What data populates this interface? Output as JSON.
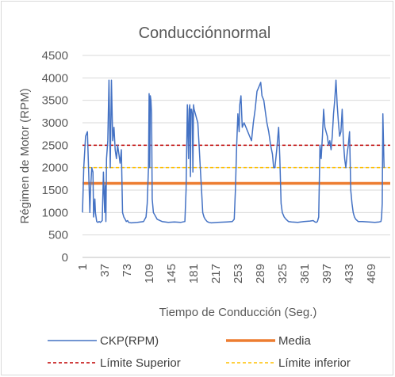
{
  "chart_data": {
    "type": "line",
    "title": "Conducciónnormal",
    "xlabel": "Tiempo de Conducción (Seg.)",
    "ylabel": "Régimen de Motor (RPM)",
    "ylim": [
      0,
      4500
    ],
    "y_ticks": [
      "0",
      "500",
      "1000",
      "1500",
      "2000",
      "2500",
      "3000",
      "3500",
      "4000",
      "4500"
    ],
    "xlim": [
      1,
      500
    ],
    "x_ticks": [
      "1",
      "37",
      "73",
      "109",
      "145",
      "181",
      "217",
      "253",
      "289",
      "325",
      "361",
      "397",
      "433",
      "469"
    ],
    "grid": "horizontal",
    "legend_position": "bottom",
    "series": [
      {
        "name": "CKP(RPM)",
        "style": "solid",
        "color": "#4472c4",
        "x": [
          1,
          3,
          6,
          9,
          11,
          13,
          14,
          16,
          18,
          19,
          21,
          22,
          24,
          26,
          28,
          30,
          33,
          35,
          37,
          38,
          39,
          40,
          42,
          44,
          46,
          48,
          50,
          52,
          54,
          56,
          58,
          60,
          62,
          64,
          66,
          68,
          70,
          72,
          74,
          76,
          80,
          90,
          100,
          104,
          106,
          107,
          108,
          109,
          110,
          111,
          112,
          113,
          114,
          116,
          118,
          122,
          130,
          140,
          150,
          160,
          167,
          169,
          171,
          172,
          173,
          174,
          175,
          176,
          177,
          178,
          179,
          180,
          181,
          182,
          184,
          186,
          188,
          190,
          192,
          194,
          196,
          198,
          200,
          203,
          206,
          210,
          220,
          235,
          244,
          247,
          249,
          251,
          253,
          255,
          256,
          258,
          260,
          263,
          266,
          269,
          272,
          275,
          278,
          281,
          284,
          287,
          290,
          292,
          295,
          298,
          300,
          303,
          306,
          309,
          311,
          313,
          316,
          319,
          321,
          323,
          325,
          328,
          331,
          335,
          340,
          350,
          360,
          370,
          375,
          378,
          380,
          382,
          384,
          386,
          388,
          390,
          392,
          394,
          396,
          398,
          400,
          402,
          404,
          406,
          408,
          410,
          412,
          414,
          416,
          418,
          420,
          422,
          424,
          426,
          428,
          430,
          432,
          434,
          436,
          438,
          440,
          442,
          444,
          448,
          455,
          465,
          475,
          482,
          485,
          486,
          487,
          488,
          490
        ],
        "values": [
          1000,
          2000,
          2700,
          2800,
          1900,
          1000,
          1500,
          2000,
          1900,
          900,
          1300,
          1000,
          800,
          780,
          800,
          780,
          820,
          1900,
          1000,
          1600,
          800,
          2200,
          2600,
          3950,
          2000,
          3950,
          2600,
          2900,
          2400,
          2200,
          2500,
          2300,
          2100,
          2400,
          1000,
          900,
          850,
          800,
          820,
          780,
          770,
          780,
          800,
          900,
          1200,
          1600,
          2000,
          3650,
          2000,
          3600,
          3500,
          3200,
          1300,
          1000,
          950,
          850,
          800,
          780,
          790,
          780,
          800,
          1500,
          3400,
          2800,
          2200,
          3300,
          3400,
          1800,
          3300,
          3300,
          3200,
          1900,
          3400,
          3300,
          3200,
          3100,
          3000,
          2500,
          2000,
          1500,
          1000,
          900,
          850,
          800,
          780,
          770,
          780,
          790,
          800,
          850,
          1500,
          2500,
          3200,
          2800,
          3400,
          3600,
          2900,
          3000,
          2900,
          2800,
          2700,
          2600,
          3000,
          3300,
          3700,
          3800,
          3900,
          3600,
          3500,
          3200,
          3000,
          2800,
          2500,
          2300,
          2000,
          2000,
          2400,
          2900,
          2200,
          1200,
          1000,
          900,
          850,
          800,
          790,
          780,
          800,
          810,
          820,
          790,
          780,
          800,
          900,
          2500,
          2200,
          2700,
          3300,
          2900,
          2800,
          2700,
          2500,
          2600,
          2400,
          2700,
          3200,
          3500,
          3950,
          3400,
          3000,
          2700,
          2800,
          3300,
          2600,
          2200,
          2000,
          2300,
          2500,
          2800,
          1500,
          1200,
          1000,
          900,
          850,
          800,
          800,
          790,
          780,
          790,
          800,
          900,
          1200,
          3200,
          2000
        ]
      },
      {
        "name": "Media",
        "style": "solid",
        "color": "#ed7d31",
        "value": 1650
      },
      {
        "name": "Límite Superior",
        "style": "dashed",
        "color": "#c00000",
        "value": 2500
      },
      {
        "name": "Límite inferior",
        "style": "dashed",
        "color": "#ffc000",
        "value": 2000
      }
    ]
  }
}
